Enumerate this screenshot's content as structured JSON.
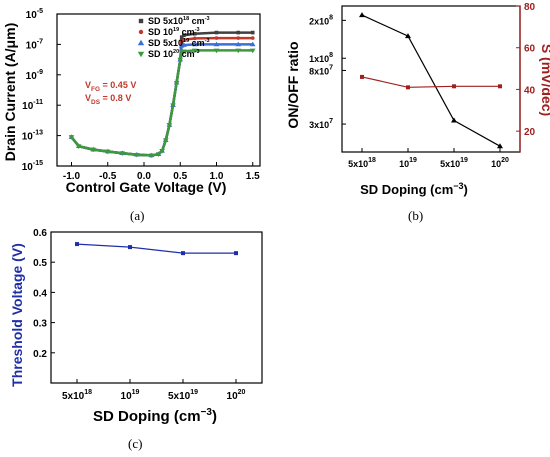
{
  "chart_data": [
    {
      "panel": "(a)",
      "type": "line",
      "xlabel": "Control Gate Voltage (V)",
      "ylabel": "Drain Current (A/μm)",
      "log_y": true,
      "xlim": [
        -1.2,
        1.6
      ],
      "ylim": [
        1e-15,
        1e-05
      ],
      "x_ticks": [
        "-1.0",
        "-0.5",
        "0.0",
        "0.5",
        "1.0",
        "1.5"
      ],
      "y_ticks": [
        "10",
        "10",
        "10",
        "10",
        "10",
        "10"
      ],
      "y_tick_exponents": [
        "-15",
        "-13",
        "-11",
        "-9",
        "-7",
        "-5"
      ],
      "legend_position": "top-right",
      "annotations": [
        {
          "base": "V",
          "sub": "FG",
          "rest": " = 0.45 V",
          "color": "#c0392b"
        },
        {
          "base": "V",
          "sub": "DS",
          "rest": " = 0.8 V",
          "color": "#c0392b"
        }
      ],
      "series": [
        {
          "name": "SD 5x10",
          "exp": "18",
          "unit": " cm",
          "unit_exp": "-3",
          "color": "#404040",
          "marker": "square",
          "x": [
            -1.0,
            -0.9,
            -0.7,
            -0.5,
            -0.3,
            -0.1,
            0.1,
            0.2,
            0.25,
            0.3,
            0.35,
            0.4,
            0.45,
            0.5,
            0.52,
            0.55,
            0.7,
            1.0,
            1.3,
            1.5
          ],
          "y": [
            8e-14,
            2e-14,
            1.2e-14,
            9e-15,
            7e-15,
            5.5e-15,
            5e-15,
            6e-15,
            1e-14,
            5e-14,
            5e-13,
            1e-11,
            3e-10,
            1e-08,
            3e-07,
            4e-07,
            5e-07,
            6e-07,
            6e-07,
            6e-07
          ]
        },
        {
          "name": "SD 10",
          "exp": "19",
          "unit": " cm",
          "unit_exp": "-3",
          "color": "#c0392b",
          "marker": "circle",
          "x": [
            -1.0,
            -0.9,
            -0.7,
            -0.5,
            -0.3,
            -0.1,
            0.1,
            0.2,
            0.25,
            0.3,
            0.35,
            0.4,
            0.45,
            0.5,
            0.52,
            0.55,
            0.7,
            1.0,
            1.3,
            1.5
          ],
          "y": [
            8e-14,
            2e-14,
            1.2e-14,
            9e-15,
            7e-15,
            5.5e-15,
            5e-15,
            6e-15,
            1e-14,
            5e-14,
            5e-13,
            1e-11,
            3e-10,
            1e-08,
            1.5e-07,
            2e-07,
            2.5e-07,
            2.6e-07,
            2.6e-07,
            2.6e-07
          ]
        },
        {
          "name": "SD 5x10",
          "exp": "19",
          "unit": " cm",
          "unit_exp": "-3",
          "color": "#3b6fd8",
          "marker": "triangle",
          "x": [
            -1.0,
            -0.9,
            -0.7,
            -0.5,
            -0.3,
            -0.1,
            0.1,
            0.2,
            0.25,
            0.3,
            0.35,
            0.4,
            0.45,
            0.5,
            0.52,
            0.55,
            0.7,
            1.0,
            1.3,
            1.5
          ],
          "y": [
            8e-14,
            2e-14,
            1.2e-14,
            9e-15,
            7e-15,
            5.5e-15,
            5e-15,
            6e-15,
            1e-14,
            5e-14,
            5e-13,
            1e-11,
            3e-10,
            1e-08,
            8e-08,
            9e-08,
            1e-07,
            1e-07,
            1e-07,
            1e-07
          ]
        },
        {
          "name": "SD 10",
          "exp": "20",
          "unit": " cm",
          "unit_exp": "-3",
          "color": "#3c9a3c",
          "marker": "triangle-down",
          "x": [
            -1.0,
            -0.9,
            -0.7,
            -0.5,
            -0.3,
            -0.1,
            0.1,
            0.2,
            0.25,
            0.3,
            0.35,
            0.4,
            0.45,
            0.5,
            0.52,
            0.55,
            0.7,
            1.0,
            1.3,
            1.5
          ],
          "y": [
            8e-14,
            2e-14,
            1.2e-14,
            9e-15,
            7e-15,
            5.5e-15,
            5e-15,
            6e-15,
            1e-14,
            5e-14,
            5e-13,
            1e-11,
            3e-10,
            1e-08,
            3e-08,
            3.5e-08,
            4e-08,
            4e-08,
            4e-08,
            4e-08
          ]
        }
      ]
    },
    {
      "panel": "(b)",
      "type": "line",
      "xlabel": "SD Doping (cm",
      "xlabel_exp": "−3",
      "xlabel_end": ")",
      "categories": [
        "5x10",
        "10",
        "5x10",
        "10"
      ],
      "category_exponents": [
        "18",
        "19",
        "19",
        "20"
      ],
      "y_left_label": "ON/OFF ratio",
      "y_left_ticks": [
        "3x10",
        "8x10",
        "1x10",
        "2x10"
      ],
      "y_left_exponents": [
        "7",
        "7",
        "8",
        "8"
      ],
      "y_left_values": [
        30000000,
        80000000,
        100000000,
        200000000
      ],
      "y_right_label": "S (mV/dec)",
      "y_right_ticks": [
        "20",
        "40",
        "60",
        "80"
      ],
      "y_right_lim": [
        10,
        80
      ],
      "series": [
        {
          "axis": "left",
          "color": "#000000",
          "marker": "triangle",
          "values": [
            220000000,
            150000000,
            32000000,
            20000000
          ]
        },
        {
          "axis": "right",
          "color": "#a02020",
          "marker": "square",
          "values": [
            46,
            41,
            41.5,
            41.5
          ]
        }
      ]
    },
    {
      "panel": "(c)",
      "type": "line",
      "xlabel": "SD Doping (cm",
      "xlabel_exp": "−3",
      "xlabel_end": ")",
      "ylabel": "Threshold Voltage (V)",
      "categories": [
        "5x10",
        "10",
        "5x10",
        "10"
      ],
      "category_exponents": [
        "18",
        "19",
        "19",
        "20"
      ],
      "ylim": [
        0.1,
        0.6
      ],
      "y_ticks": [
        "0.2",
        "0.3",
        "0.4",
        "0.5",
        "0.6"
      ],
      "series": [
        {
          "color": "#1f2fa8",
          "marker": "square",
          "values": [
            0.56,
            0.55,
            0.53,
            0.53
          ]
        }
      ]
    }
  ],
  "captions": {
    "a": "(a)",
    "b": "(b)",
    "c": "(c)"
  }
}
